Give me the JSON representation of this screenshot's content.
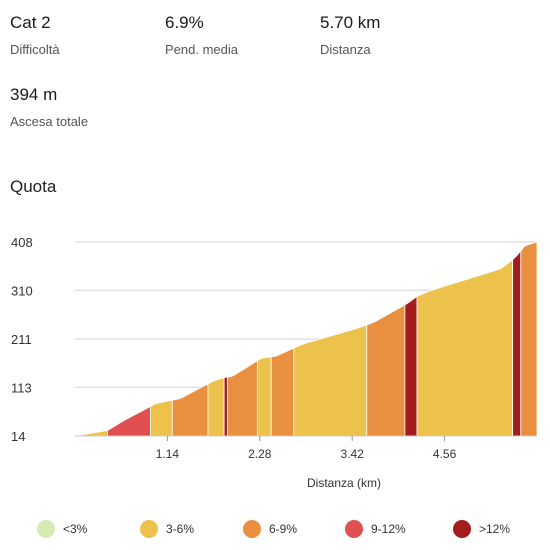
{
  "stats": [
    {
      "value": "Cat 2",
      "label": "Difficoltà"
    },
    {
      "value": "6.9%",
      "label": "Pend. media"
    },
    {
      "value": "5.70 km",
      "label": "Distanza"
    },
    {
      "value": "394 m",
      "label": "Ascesa totale"
    }
  ],
  "section_title": "Quota",
  "colors": {
    "<3%": "#d4ecb1",
    "3-6%": "#ecc24c",
    "6-9%": "#e98f40",
    "9-12%": "#e05050",
    ">12%": "#a21d1b"
  },
  "legend": [
    {
      "label": "<3%",
      "color": "#d4ecb1"
    },
    {
      "label": "3-6%",
      "color": "#ecc24c"
    },
    {
      "label": "6-9%",
      "color": "#e98f40"
    },
    {
      "label": "9-12%",
      "color": "#e05050"
    },
    {
      "label": ">12%",
      "color": "#a21d1b"
    }
  ],
  "chart_data": {
    "type": "area",
    "title": "Quota",
    "xlabel": "Distanza (km)",
    "ylabel": "",
    "xlim": [
      0,
      5.7
    ],
    "ylim": [
      14,
      408
    ],
    "x_ticks": [
      1.14,
      2.28,
      3.42,
      4.56
    ],
    "x_tick_labels": [
      "1.14",
      "2.28",
      "3.42",
      "4.56"
    ],
    "y_ticks": [
      14,
      113,
      211,
      310,
      408
    ],
    "y_tick_labels": [
      "14",
      "113",
      "211",
      "310",
      "408"
    ],
    "grid": true,
    "profile": [
      {
        "x": 0.0,
        "y": 14
      },
      {
        "x": 0.4,
        "y": 25
      },
      {
        "x": 0.6,
        "y": 45
      },
      {
        "x": 1.0,
        "y": 80
      },
      {
        "x": 1.3,
        "y": 90
      },
      {
        "x": 1.7,
        "y": 125
      },
      {
        "x": 1.85,
        "y": 133
      },
      {
        "x": 1.94,
        "y": 135
      },
      {
        "x": 2.3,
        "y": 172
      },
      {
        "x": 2.48,
        "y": 176
      },
      {
        "x": 2.8,
        "y": 200
      },
      {
        "x": 3.55,
        "y": 236
      },
      {
        "x": 3.7,
        "y": 246
      },
      {
        "x": 4.1,
        "y": 283
      },
      {
        "x": 4.24,
        "y": 300
      },
      {
        "x": 4.4,
        "y": 310
      },
      {
        "x": 5.3,
        "y": 356
      },
      {
        "x": 5.45,
        "y": 380
      },
      {
        "x": 5.55,
        "y": 400
      },
      {
        "x": 5.7,
        "y": 408
      }
    ],
    "segments": [
      {
        "from": 0.0,
        "to": 0.4,
        "grade": "3-6%"
      },
      {
        "from": 0.4,
        "to": 0.93,
        "grade": "9-12%"
      },
      {
        "from": 0.93,
        "to": 1.2,
        "grade": "3-6%"
      },
      {
        "from": 1.2,
        "to": 1.64,
        "grade": "6-9%"
      },
      {
        "from": 1.64,
        "to": 1.84,
        "grade": "3-6%"
      },
      {
        "from": 1.84,
        "to": 1.88,
        "grade": ">12%"
      },
      {
        "from": 1.88,
        "to": 2.25,
        "grade": "6-9%"
      },
      {
        "from": 2.25,
        "to": 2.42,
        "grade": "3-6%"
      },
      {
        "from": 2.42,
        "to": 2.7,
        "grade": "6-9%"
      },
      {
        "from": 2.7,
        "to": 3.6,
        "grade": "3-6%"
      },
      {
        "from": 3.6,
        "to": 4.07,
        "grade": "6-9%"
      },
      {
        "from": 4.07,
        "to": 4.22,
        "grade": ">12%"
      },
      {
        "from": 4.22,
        "to": 5.4,
        "grade": "3-6%"
      },
      {
        "from": 5.4,
        "to": 5.5,
        "grade": ">12%"
      },
      {
        "from": 5.5,
        "to": 5.7,
        "grade": "6-9%"
      }
    ]
  }
}
